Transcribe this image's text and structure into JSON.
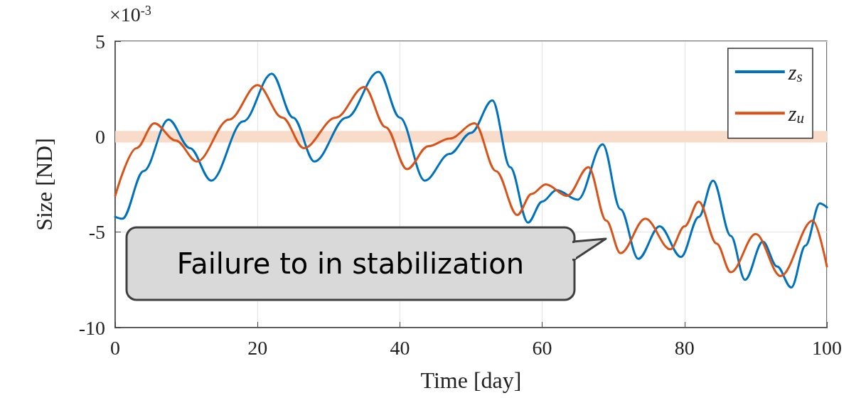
{
  "chart_data": {
    "type": "line",
    "xlabel": "Time [day]",
    "ylabel": "Size [ND]",
    "annotations": [
      "×10$^{-3}$",
      "Failure to in stabilization"
    ],
    "xlim": [
      0,
      100
    ],
    "xticks": [
      0,
      20,
      40,
      60,
      80,
      100
    ],
    "ylim": [
      -10,
      5
    ],
    "yticks": [
      5,
      0,
      -5,
      -10
    ],
    "grid": true,
    "legend": "top right",
    "marker": "none",
    "line_style": "solid",
    "bands": [
      {
        "axis": "y",
        "from": -0.3,
        "to": 0.3,
        "color": "#f8dcc9"
      }
    ],
    "series": [
      {
        "name": "z$_{s}$",
        "color": "#0072bd",
        "x": [
          0,
          1,
          4,
          7.5,
          10.5,
          13.5,
          18,
          22,
          25,
          28,
          32.5,
          37,
          40,
          43.5,
          47,
          50,
          53,
          55.5,
          58,
          60,
          62,
          65,
          68.5,
          71,
          73.5,
          76.5,
          79.5,
          82,
          84,
          86.5,
          88.5,
          91,
          93,
          95,
          97,
          99,
          100
        ],
        "values": [
          -4.2,
          -4.3,
          -1.8,
          0.9,
          -0.6,
          -2.3,
          0.8,
          3.3,
          1.0,
          -1.3,
          1.0,
          3.4,
          1.0,
          -2.3,
          -0.9,
          0.2,
          1.9,
          -1.6,
          -4.5,
          -3.4,
          -2.8,
          -3.3,
          -0.4,
          -3.8,
          -6.4,
          -4.7,
          -6.3,
          -4.2,
          -2.3,
          -5.2,
          -7.5,
          -5.5,
          -6.8,
          -7.9,
          -5.7,
          -3.5,
          -3.7
        ]
      },
      {
        "name": "z$_{u}$",
        "color": "#d95319",
        "x": [
          0,
          3,
          5.5,
          8.5,
          11.5,
          16,
          20,
          23.5,
          26.5,
          31,
          35,
          38,
          41,
          44,
          47,
          50.5,
          53.5,
          56.5,
          58.5,
          60.5,
          63.5,
          66.5,
          69,
          71,
          74.5,
          78,
          80,
          82,
          84.5,
          86.5,
          90,
          93.5,
          98,
          100
        ],
        "values": [
          -3.1,
          -0.6,
          0.7,
          -0.2,
          -1.3,
          0.9,
          2.7,
          1.0,
          -0.6,
          1.0,
          2.6,
          0.5,
          -1.7,
          -0.5,
          -0.1,
          0.7,
          -1.8,
          -4.1,
          -3.0,
          -2.5,
          -3.1,
          -1.6,
          -4.4,
          -6.1,
          -4.3,
          -5.9,
          -4.7,
          -3.4,
          -5.6,
          -7.1,
          -5.1,
          -7.3,
          -4.4,
          -6.8
        ]
      }
    ]
  }
}
